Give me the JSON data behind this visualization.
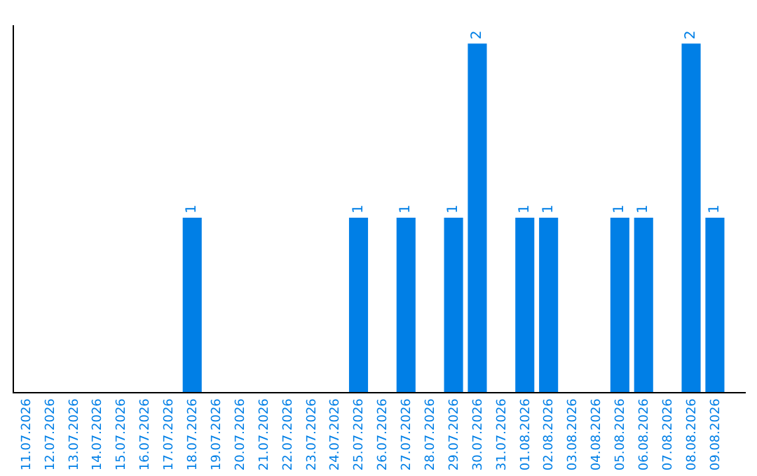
{
  "chart_data": {
    "type": "bar",
    "categories": [
      "11.07.2026",
      "12.07.2026",
      "13.07.2026",
      "14.07.2026",
      "15.07.2026",
      "16.07.2026",
      "17.07.2026",
      "18.07.2026",
      "19.07.2026",
      "20.07.2026",
      "21.07.2026",
      "22.07.2026",
      "23.07.2026",
      "24.07.2026",
      "25.07.2026",
      "26.07.2026",
      "27.07.2026",
      "28.07.2026",
      "29.07.2026",
      "30.07.2026",
      "31.07.2026",
      "01.08.2026",
      "02.08.2026",
      "03.08.2026",
      "04.08.2026",
      "05.08.2026",
      "06.08.2026",
      "07.08.2026",
      "08.08.2026",
      "09.08.2026"
    ],
    "values": [
      0,
      0,
      0,
      0,
      0,
      0,
      0,
      1,
      0,
      0,
      0,
      0,
      0,
      0,
      1,
      0,
      1,
      0,
      1,
      2,
      0,
      1,
      1,
      0,
      0,
      1,
      1,
      0,
      2,
      1
    ],
    "value_labels": [
      null,
      null,
      null,
      null,
      null,
      null,
      null,
      "1",
      null,
      null,
      null,
      null,
      null,
      null,
      "1",
      null,
      "1",
      null,
      "1",
      "2",
      null,
      "1",
      "1",
      null,
      null,
      "1",
      "1",
      null,
      "2",
      "1"
    ],
    "color": "#007fe6",
    "tick_labels": "x",
    "legend": false
  }
}
